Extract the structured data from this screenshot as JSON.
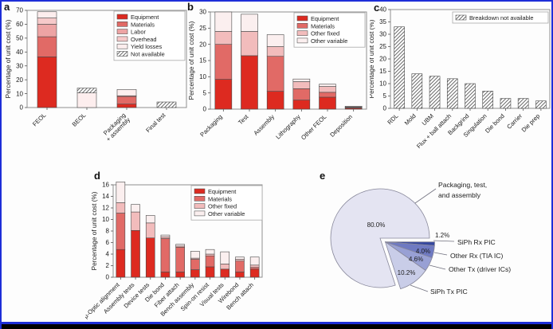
{
  "figure": {
    "panels": [
      {
        "letter": "a"
      },
      {
        "letter": "b"
      },
      {
        "letter": "c"
      },
      {
        "letter": "d"
      },
      {
        "letter": "e"
      }
    ],
    "colors": {
      "frame_blue": "#1e2ed8",
      "bottom_black": "#000000",
      "equipment_red": "#dd2a20",
      "materials_red": "#e16a66",
      "labor_pink": "#eda4a4",
      "overhead_pink": "#f6caca",
      "yield_pink": "#fdeeee",
      "other_fixed_pink": "#f2bcbc",
      "other_variable_pink": "#fbefef"
    }
  },
  "chart_data": [
    {
      "id": "a",
      "type": "bar",
      "stacked": true,
      "ylabel": "Percentage of unit cost (%)",
      "ylim": [
        0,
        70
      ],
      "yticks": [
        0,
        10,
        20,
        30,
        40,
        50,
        60,
        70
      ],
      "categories": [
        "FEOL",
        "BEOL",
        "Packaging\n+ assembly",
        "Final test"
      ],
      "series": [
        {
          "name": "Equipment",
          "color": "#dd2a20",
          "values": [
            36.5,
            0,
            2.5,
            0
          ]
        },
        {
          "name": "Materials",
          "color": "#e16a66",
          "values": [
            14.5,
            0,
            5.5,
            0
          ]
        },
        {
          "name": "Labor",
          "color": "#eda4a4",
          "values": [
            9,
            0,
            0.5,
            0
          ]
        },
        {
          "name": "Overhead",
          "color": "#f6caca",
          "values": [
            4.5,
            0,
            0,
            0
          ]
        },
        {
          "name": "Yield losses",
          "color": "#fdeeee",
          "values": [
            4.5,
            10.5,
            4.5,
            0
          ]
        },
        {
          "name": "Not available",
          "color": "hatch",
          "hatch": true,
          "values": [
            0,
            3.5,
            0,
            4
          ]
        }
      ],
      "legend_position": "top-right",
      "grid": false
    },
    {
      "id": "b",
      "type": "bar",
      "stacked": true,
      "ylabel": "Percentage of unit cost (%)",
      "ylim": [
        0,
        30
      ],
      "yticks": [
        0,
        5,
        10,
        15,
        20,
        25,
        30
      ],
      "categories": [
        "Packaging",
        "Test",
        "Assembly",
        "Lithography",
        "Other FEOL",
        "Deposition"
      ],
      "series": [
        {
          "name": "Equipment",
          "color": "#dd2a20",
          "values": [
            9.2,
            16.5,
            5.5,
            2.8,
            3.7,
            0.3
          ]
        },
        {
          "name": "Materials",
          "color": "#e16a66",
          "values": [
            10.8,
            0,
            10.8,
            3.5,
            1.5,
            0.2
          ]
        },
        {
          "name": "Other fixed",
          "color": "#f2bcbc",
          "values": [
            4.0,
            7.5,
            3.0,
            2.2,
            1.8,
            0.2
          ]
        },
        {
          "name": "Other variable",
          "color": "#fbefef",
          "values": [
            6.0,
            5.3,
            3.7,
            0.8,
            0.7,
            0.2
          ]
        }
      ],
      "legend_position": "top-right",
      "grid": false
    },
    {
      "id": "c",
      "type": "bar",
      "stacked": false,
      "ylabel": "Percentage of unit cost (%)",
      "ylim": [
        0,
        40
      ],
      "yticks": [
        0,
        5,
        10,
        15,
        20,
        25,
        30,
        35,
        40
      ],
      "categories": [
        "RDL",
        "Mold",
        "UBM",
        "Flux + ball attach",
        "Backgrind",
        "Singulation",
        "Die bond",
        "Carrier",
        "Die prep"
      ],
      "series": [
        {
          "name": "Breakdown not available",
          "color": "hatch",
          "hatch": true,
          "values": [
            33,
            14,
            13,
            12,
            10,
            7,
            4,
            4,
            3
          ]
        }
      ],
      "legend_label": "Breakdown not available",
      "legend_position": "top-right",
      "grid": false
    },
    {
      "id": "d",
      "type": "bar",
      "stacked": true,
      "ylabel": "Percentage of unit cost (%)",
      "ylim": [
        0,
        16
      ],
      "yticks": [
        0,
        2,
        4,
        6,
        8,
        10,
        12,
        14,
        16
      ],
      "categories": [
        "μ-Optic alignment",
        "Assembly tests",
        "Device tests",
        "Die bond",
        "Fiber attach",
        "Bench assembly",
        "Spin-on resist",
        "Visual tests",
        "Wirebond",
        "Bench attach"
      ],
      "series": [
        {
          "name": "Equipment",
          "color": "#dd2a20",
          "values": [
            4.8,
            8.1,
            6.8,
            0.9,
            0.9,
            1.3,
            1.8,
            1.4,
            0.9,
            1.4
          ]
        },
        {
          "name": "Materials",
          "color": "#e16a66",
          "values": [
            6.3,
            0,
            0,
            5.8,
            4.3,
            1.8,
            1.9,
            0,
            1.9,
            0.3
          ]
        },
        {
          "name": "Other fixed",
          "color": "#f2bcbc",
          "values": [
            1.8,
            3.2,
            2.6,
            0.3,
            0.2,
            0.2,
            0.3,
            0.9,
            0.3,
            0.4
          ]
        },
        {
          "name": "Other variable",
          "color": "#fbefef",
          "values": [
            3.6,
            1.3,
            1.3,
            0.3,
            0.3,
            1.2,
            0.8,
            2.1,
            0.4,
            1.4
          ]
        }
      ],
      "legend_position": "top-right",
      "grid": false
    },
    {
      "id": "e",
      "type": "pie",
      "slices": [
        {
          "label": "Packaging, test,\nand assembly",
          "value": 80.0,
          "pct_label": "80.0%",
          "color": "#e4e4f2"
        },
        {
          "label": "SiPh Rx PIC",
          "value": 1.2,
          "pct_label": "1.2%",
          "color": "#35479e"
        },
        {
          "label": "Other Rx (TIA IC)",
          "value": 4.0,
          "pct_label": "4.0%",
          "color": "#6f7ac2"
        },
        {
          "label": "Other Tx (driver ICs)",
          "value": 4.6,
          "pct_label": "4.6%",
          "color": "#98a0d4"
        },
        {
          "label": "SiPh Tx PIC",
          "value": 10.2,
          "pct_label": "10.2%",
          "color": "#c9cde8"
        }
      ],
      "exploded_group": [
        "SiPh Rx PIC",
        "Other Rx (TIA IC)",
        "Other Tx (driver ICs)",
        "SiPh Tx PIC"
      ]
    }
  ]
}
